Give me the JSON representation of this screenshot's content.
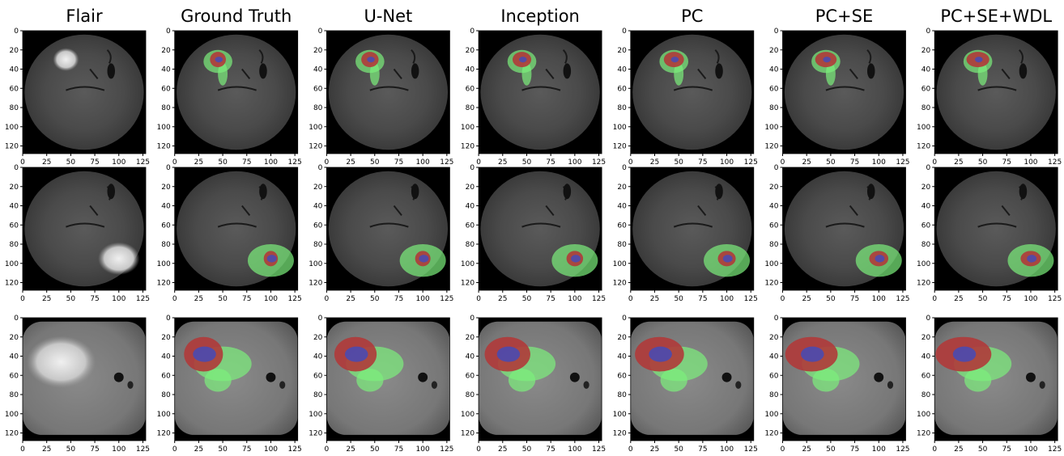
{
  "columns": [
    "Flair",
    "Ground Truth",
    "U-Net",
    "Inception",
    "PC",
    "PC+SE",
    "PC+SE+WDL"
  ],
  "rows": 3,
  "yticks": [
    0,
    20,
    40,
    60,
    80,
    100,
    120
  ],
  "xticks": [
    0,
    25,
    50,
    75,
    100,
    125
  ],
  "extent": [
    0,
    128
  ]
}
